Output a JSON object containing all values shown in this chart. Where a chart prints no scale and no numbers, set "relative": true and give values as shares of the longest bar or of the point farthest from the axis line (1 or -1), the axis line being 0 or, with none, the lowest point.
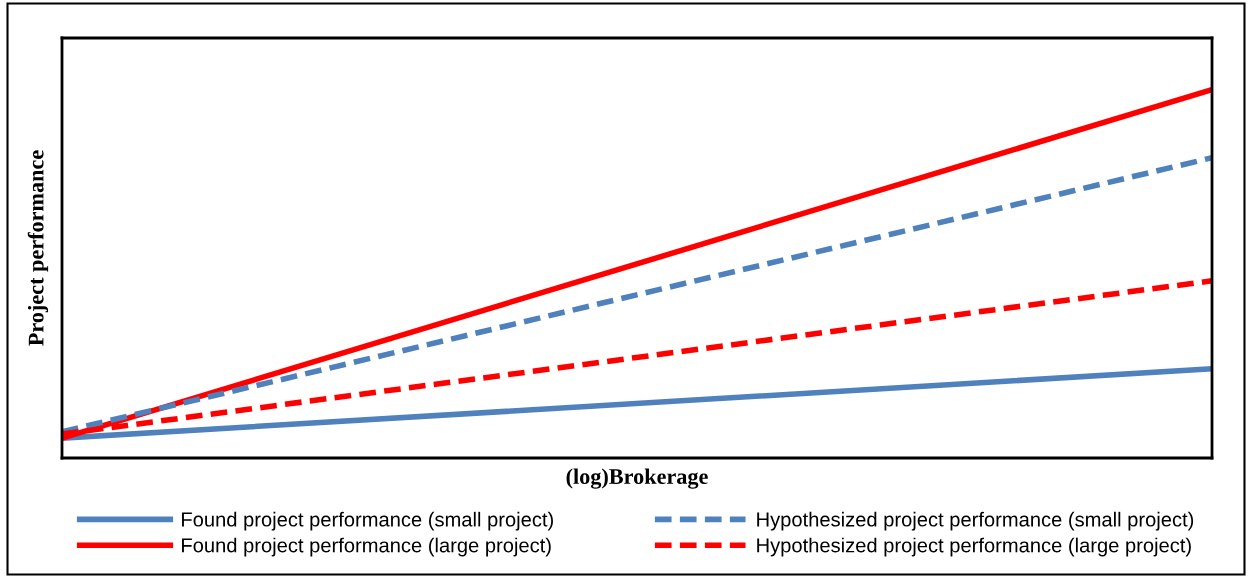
{
  "chart_data": {
    "type": "line",
    "xlabel": "(log)Brokerage",
    "ylabel": "Project performance",
    "relative": true,
    "categories": [
      null,
      null
    ],
    "legend": "bottom",
    "marker": "none",
    "series": [
      {
        "name": "Found project performance (small project)",
        "color": "#4f81bd",
        "line_style": "solid",
        "values": [
          0.054,
          0.242
        ]
      },
      {
        "name": "Found project performance (large project)",
        "color": "#ff0000",
        "line_style": "solid",
        "values": [
          0.054,
          1
        ]
      },
      {
        "name": "Hypothesized project performance (small project)",
        "color": "#4f81bd",
        "line_style": "dashed",
        "values": [
          0.071,
          0.815
        ]
      },
      {
        "name": "Hypothesized project performance (large project)",
        "color": "#ff0000",
        "line_style": "dashed",
        "values": [
          0.065,
          0.481
        ]
      }
    ]
  }
}
